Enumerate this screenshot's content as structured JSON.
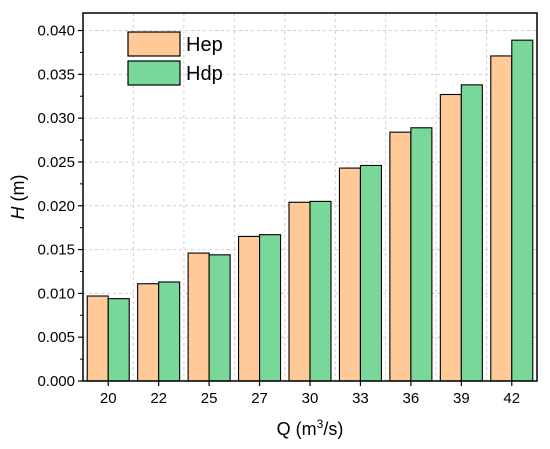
{
  "chart_data": {
    "type": "bar",
    "categories": [
      "20",
      "22",
      "25",
      "27",
      "30",
      "33",
      "36",
      "39",
      "42"
    ],
    "series": [
      {
        "name": "Hep",
        "color": "#FFC998",
        "values": [
          0.0097,
          0.0111,
          0.0146,
          0.0165,
          0.0204,
          0.0243,
          0.0284,
          0.0327,
          0.0371
        ]
      },
      {
        "name": "Hdp",
        "color": "#79D799",
        "values": [
          0.0094,
          0.0113,
          0.0144,
          0.0167,
          0.0205,
          0.0246,
          0.0289,
          0.0338,
          0.0389
        ]
      }
    ],
    "xlabel": {
      "base": "Q  (m",
      "sup": "3",
      "tail": "/s)"
    },
    "ylabel": {
      "italic": "H",
      "rest": " (m)"
    },
    "ylim": [
      0,
      0.042
    ],
    "yticks": [
      "0.000",
      "0.005",
      "0.010",
      "0.015",
      "0.020",
      "0.025",
      "0.030",
      "0.035",
      "0.040"
    ],
    "grid": true,
    "legend": "top-left"
  }
}
